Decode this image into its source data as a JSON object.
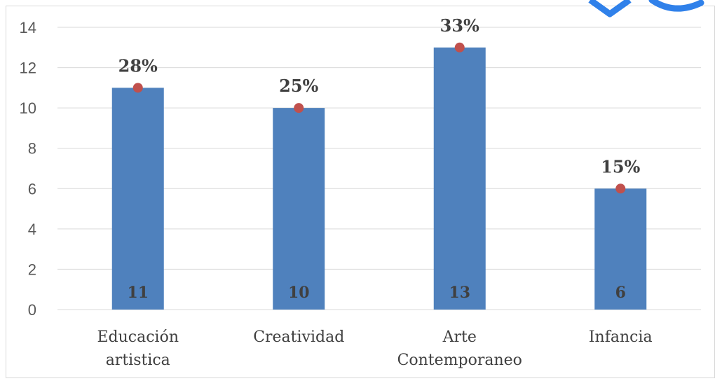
{
  "chart_data": {
    "type": "bar",
    "categories": [
      [
        "Educación",
        "artistica"
      ],
      [
        "Creatividad"
      ],
      [
        "Arte",
        "Contemporaneo"
      ],
      [
        "Infancia"
      ]
    ],
    "values": [
      11,
      10,
      13,
      6
    ],
    "percent_labels": [
      "28%",
      "25%",
      "33%",
      "15%"
    ],
    "value_labels": [
      "11",
      "10",
      "13",
      "6"
    ],
    "y_ticks": [
      "0",
      "2",
      "4",
      "6",
      "8",
      "10",
      "12",
      "14"
    ],
    "ylim": [
      0,
      14
    ],
    "title": "",
    "xlabel": "",
    "ylabel": "",
    "grid": true,
    "legend": "none",
    "colors": {
      "bar": "#4f81bd",
      "marker": "#c0504d",
      "grid": "#d9d9d9",
      "watermark": "#1a73e8"
    }
  }
}
